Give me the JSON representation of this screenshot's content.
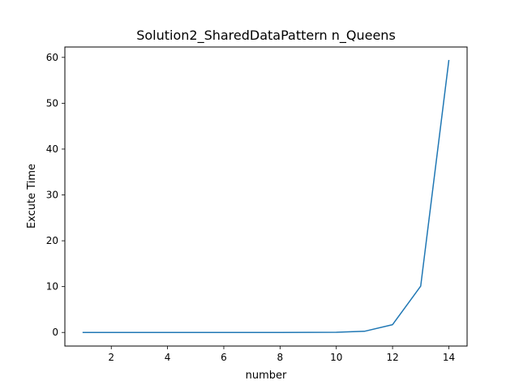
{
  "chart_data": {
    "type": "line",
    "title": "Solution2_SharedDataPattern  n_Queens",
    "xlabel": "number",
    "ylabel": "Excute Time",
    "x": [
      1,
      2,
      3,
      4,
      5,
      6,
      7,
      8,
      9,
      10,
      11,
      12,
      13,
      14
    ],
    "series": [
      {
        "values": [
          0.0,
          0.0,
          0.0,
          0.0,
          0.0,
          0.0,
          0.0,
          0.0,
          0.01,
          0.05,
          0.25,
          1.7,
          10.1,
          59.3
        ]
      }
    ],
    "xlim": [
      0.35,
      14.65
    ],
    "ylim": [
      -2.965,
      62.265
    ],
    "xticks": [
      2,
      4,
      6,
      8,
      10,
      12,
      14
    ],
    "yticks": [
      0,
      10,
      20,
      30,
      40,
      50,
      60
    ],
    "grid": false,
    "line_color": "#1f77b4"
  }
}
